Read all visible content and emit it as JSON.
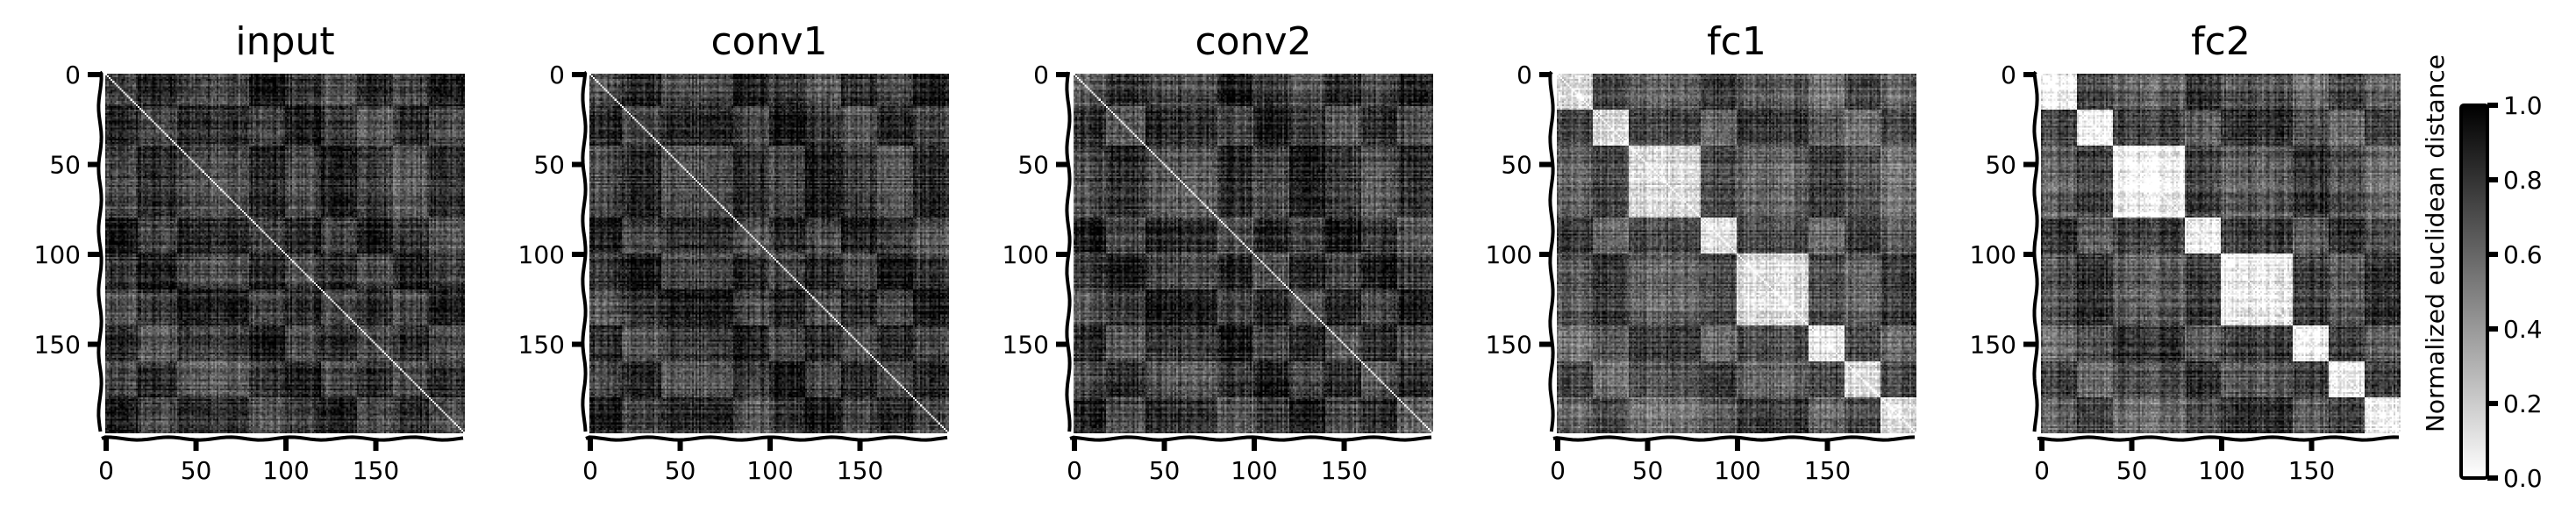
{
  "chart_data": {
    "type": "heatmap",
    "colormap": "gray",
    "matrix_size": 200,
    "panels": [
      {
        "title": "input",
        "x_ticks": [
          0,
          50,
          100,
          150
        ],
        "y_ticks": [
          0,
          50,
          100,
          150
        ],
        "blocks": [
          [
            0,
            18
          ],
          [
            18,
            40
          ],
          [
            40,
            80
          ],
          [
            80,
            100
          ],
          [
            100,
            120
          ],
          [
            120,
            140
          ],
          [
            140,
            160
          ],
          [
            160,
            180
          ],
          [
            180,
            200
          ]
        ],
        "within_block_distance": 0.72,
        "between_block_distance": 0.78
      },
      {
        "title": "conv1",
        "x_ticks": [
          0,
          50,
          100,
          150
        ],
        "y_ticks": [
          0,
          50,
          100,
          150
        ],
        "blocks": [
          [
            0,
            18
          ],
          [
            18,
            40
          ],
          [
            40,
            80
          ],
          [
            80,
            100
          ],
          [
            100,
            120
          ],
          [
            120,
            140
          ],
          [
            140,
            160
          ],
          [
            160,
            180
          ],
          [
            180,
            200
          ]
        ],
        "within_block_distance": 0.7,
        "between_block_distance": 0.78
      },
      {
        "title": "conv2",
        "x_ticks": [
          0,
          50,
          100,
          150
        ],
        "y_ticks": [
          0,
          50,
          100,
          150
        ],
        "blocks": [
          [
            0,
            18
          ],
          [
            18,
            40
          ],
          [
            40,
            80
          ],
          [
            80,
            100
          ],
          [
            100,
            120
          ],
          [
            120,
            140
          ],
          [
            140,
            160
          ],
          [
            160,
            180
          ],
          [
            180,
            200
          ]
        ],
        "within_block_distance": 0.66,
        "between_block_distance": 0.78
      },
      {
        "title": "fc1",
        "x_ticks": [
          0,
          50,
          100,
          150
        ],
        "y_ticks": [
          0,
          50,
          100,
          150
        ],
        "blocks": [
          [
            0,
            20
          ],
          [
            20,
            40
          ],
          [
            40,
            80
          ],
          [
            80,
            100
          ],
          [
            100,
            140
          ],
          [
            140,
            160
          ],
          [
            160,
            180
          ],
          [
            180,
            200
          ]
        ],
        "within_block_distance": 0.12,
        "between_block_distance": 0.65
      },
      {
        "title": "fc2",
        "x_ticks": [
          0,
          50,
          100,
          150
        ],
        "y_ticks": [
          0,
          50,
          100,
          150
        ],
        "blocks": [
          [
            0,
            20
          ],
          [
            20,
            40
          ],
          [
            40,
            80
          ],
          [
            80,
            100
          ],
          [
            100,
            140
          ],
          [
            140,
            160
          ],
          [
            160,
            180
          ],
          [
            180,
            200
          ]
        ],
        "within_block_distance": 0.05,
        "between_block_distance": 0.7
      }
    ],
    "colorbar": {
      "label": "Normalized euclidean distance",
      "range": [
        0.0,
        1.0
      ],
      "ticks": [
        "0.0",
        "0.2",
        "0.4",
        "0.6",
        "0.8",
        "1.0"
      ],
      "low_color": "#ffffff",
      "high_color": "#000000"
    }
  }
}
